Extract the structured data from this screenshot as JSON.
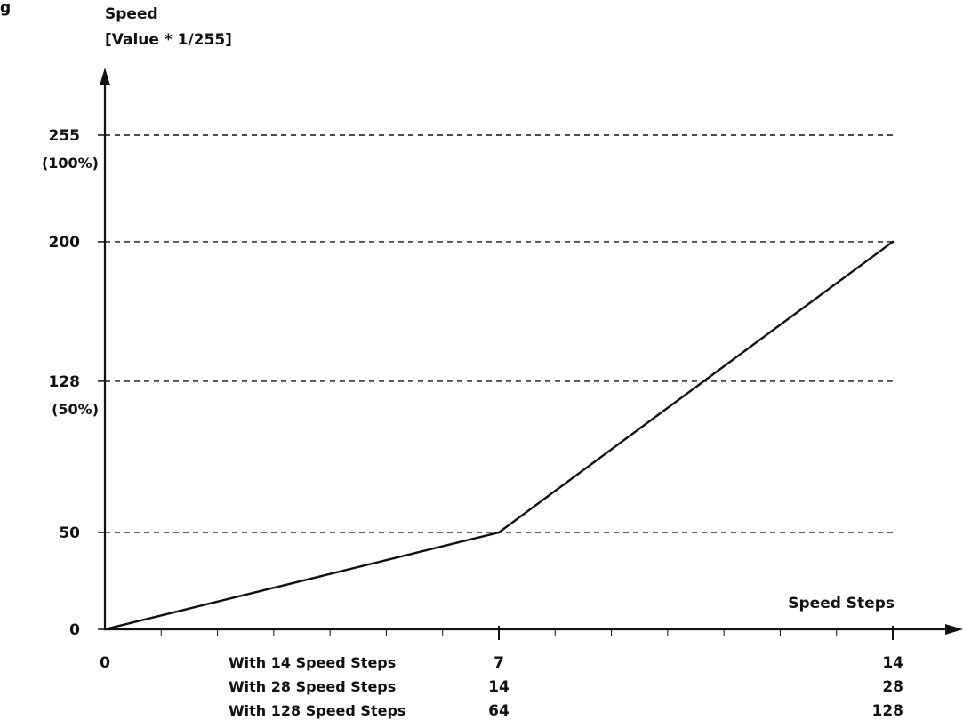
{
  "chart_data": {
    "type": "line",
    "caption_fragment": "g",
    "ylabel": [
      "Speed",
      "[Value * 1/255]"
    ],
    "xlabel": "Speed Steps",
    "xlim": [
      0,
      14
    ],
    "ylim": [
      0,
      255
    ],
    "x_origin_label": "0",
    "y_ticks": [
      {
        "value": 0,
        "label": "0",
        "sublabel": "",
        "gridline": false
      },
      {
        "value": 50,
        "label": "50",
        "sublabel": "",
        "gridline": true
      },
      {
        "value": 128,
        "label": "128",
        "sublabel": "(50%)",
        "gridline": true
      },
      {
        "value": 200,
        "label": "200",
        "sublabel": "",
        "gridline": true
      },
      {
        "value": 255,
        "label": "255",
        "sublabel": "(100%)",
        "gridline": true
      }
    ],
    "x_minor_ticks": [
      1,
      2,
      3,
      4,
      5,
      6,
      8,
      9,
      10,
      11,
      12,
      13
    ],
    "x_label_rows": [
      {
        "name": "With 14 Speed Steps",
        "labels": [
          {
            "x": 7,
            "text": "7"
          },
          {
            "x": 14,
            "text": "14"
          }
        ]
      },
      {
        "name": "With 28 Speed Steps",
        "labels": [
          {
            "x": 7,
            "text": "14"
          },
          {
            "x": 14,
            "text": "28"
          }
        ]
      },
      {
        "name": "With 128 Speed Steps",
        "labels": [
          {
            "x": 7,
            "text": "64"
          },
          {
            "x": 14,
            "text": "128"
          }
        ]
      }
    ],
    "series": [
      {
        "x": [
          0,
          7,
          14
        ],
        "y": [
          0,
          50,
          200
        ]
      }
    ],
    "grid": "dashed horizontal at labeled y ticks",
    "colors": {
      "ink": "#111111",
      "background": "#ffffff"
    }
  }
}
